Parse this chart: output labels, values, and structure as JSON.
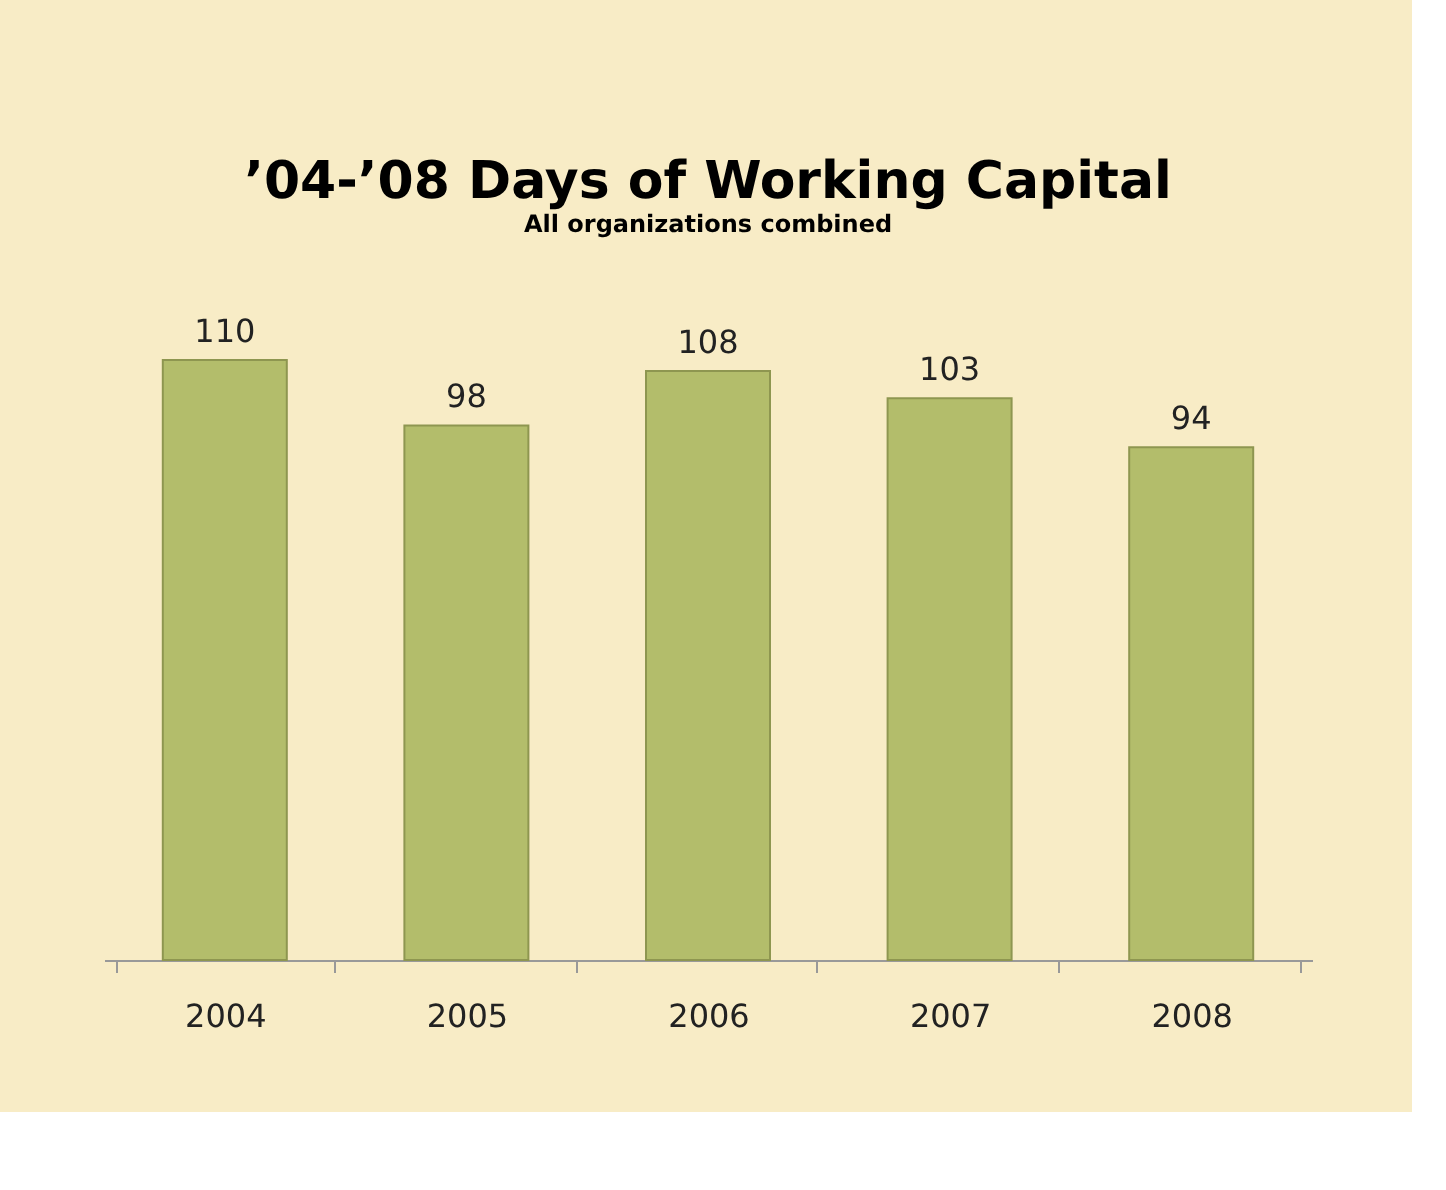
{
  "chart_data": {
    "type": "bar",
    "title": "’04-’08 Days of Working Capital",
    "subtitle": "All organizations combined",
    "categories": [
      "2004",
      "2005",
      "2006",
      "2007",
      "2008"
    ],
    "values": [
      110,
      98,
      108,
      103,
      94
    ],
    "color": "#b3bd6b",
    "data_labels": true
  }
}
